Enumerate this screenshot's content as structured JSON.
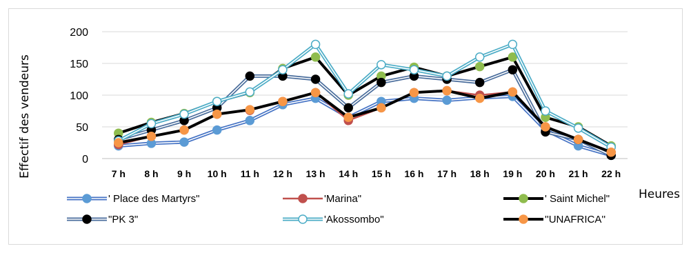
{
  "chart_data": {
    "type": "line",
    "title": "",
    "xlabel": "Heures",
    "ylabel": "Effectif des vendeurs",
    "categories": [
      "7 h",
      "8 h",
      "9 h",
      "10 h",
      "11 h",
      "12 h",
      "13 h",
      "14 h",
      "15 h",
      "16 h",
      "17 h",
      "18 h",
      "19 h",
      "20 h",
      "21 h",
      "22 h"
    ],
    "yticks": [
      "0",
      "50",
      "100",
      "150",
      "200"
    ],
    "ylim": [
      0,
      200
    ],
    "grid": true,
    "legend_placement": "bottom",
    "series": [
      {
        "name": "' Place des Martyrs\"",
        "color": "#4472c4",
        "marker": "#5b9bd5",
        "style": "double",
        "values": [
          20,
          24,
          26,
          45,
          60,
          85,
          95,
          65,
          90,
          95,
          92,
          96,
          98,
          45,
          20,
          5
        ]
      },
      {
        "name": "'Marina\"",
        "color": "#c0504d",
        "marker": "#c0504d",
        "style": "single",
        "values": [
          22,
          35,
          45,
          70,
          76,
          90,
          104,
          60,
          80,
          104,
          107,
          100,
          105,
          50,
          30,
          10
        ]
      },
      {
        "name": "' Saint Michel\"",
        "color": "#000000",
        "marker": "#8fbc4e",
        "style": "thick",
        "values": [
          40,
          57,
          71,
          90,
          104,
          142,
          160,
          100,
          130,
          144,
          130,
          145,
          160,
          65,
          50,
          20
        ]
      },
      {
        "name": "\"PK 3\"",
        "color": "#4a6d9c",
        "marker": "#000000",
        "style": "double",
        "values": [
          30,
          45,
          60,
          80,
          130,
          130,
          125,
          80,
          120,
          130,
          125,
          120,
          140,
          42,
          30,
          5
        ]
      },
      {
        "name": "'Akossombo\"",
        "color": "#4bacc6",
        "marker": "#ffffff",
        "style": "double",
        "values": [
          28,
          55,
          70,
          90,
          105,
          140,
          180,
          102,
          148,
          140,
          130,
          160,
          180,
          75,
          48,
          18
        ]
      },
      {
        "name": "''UNAFRICA''",
        "color": "#000000",
        "marker": "#f79646",
        "style": "thick",
        "values": [
          25,
          35,
          45,
          70,
          77,
          90,
          104,
          65,
          80,
          104,
          107,
          95,
          105,
          50,
          30,
          10
        ]
      }
    ]
  }
}
